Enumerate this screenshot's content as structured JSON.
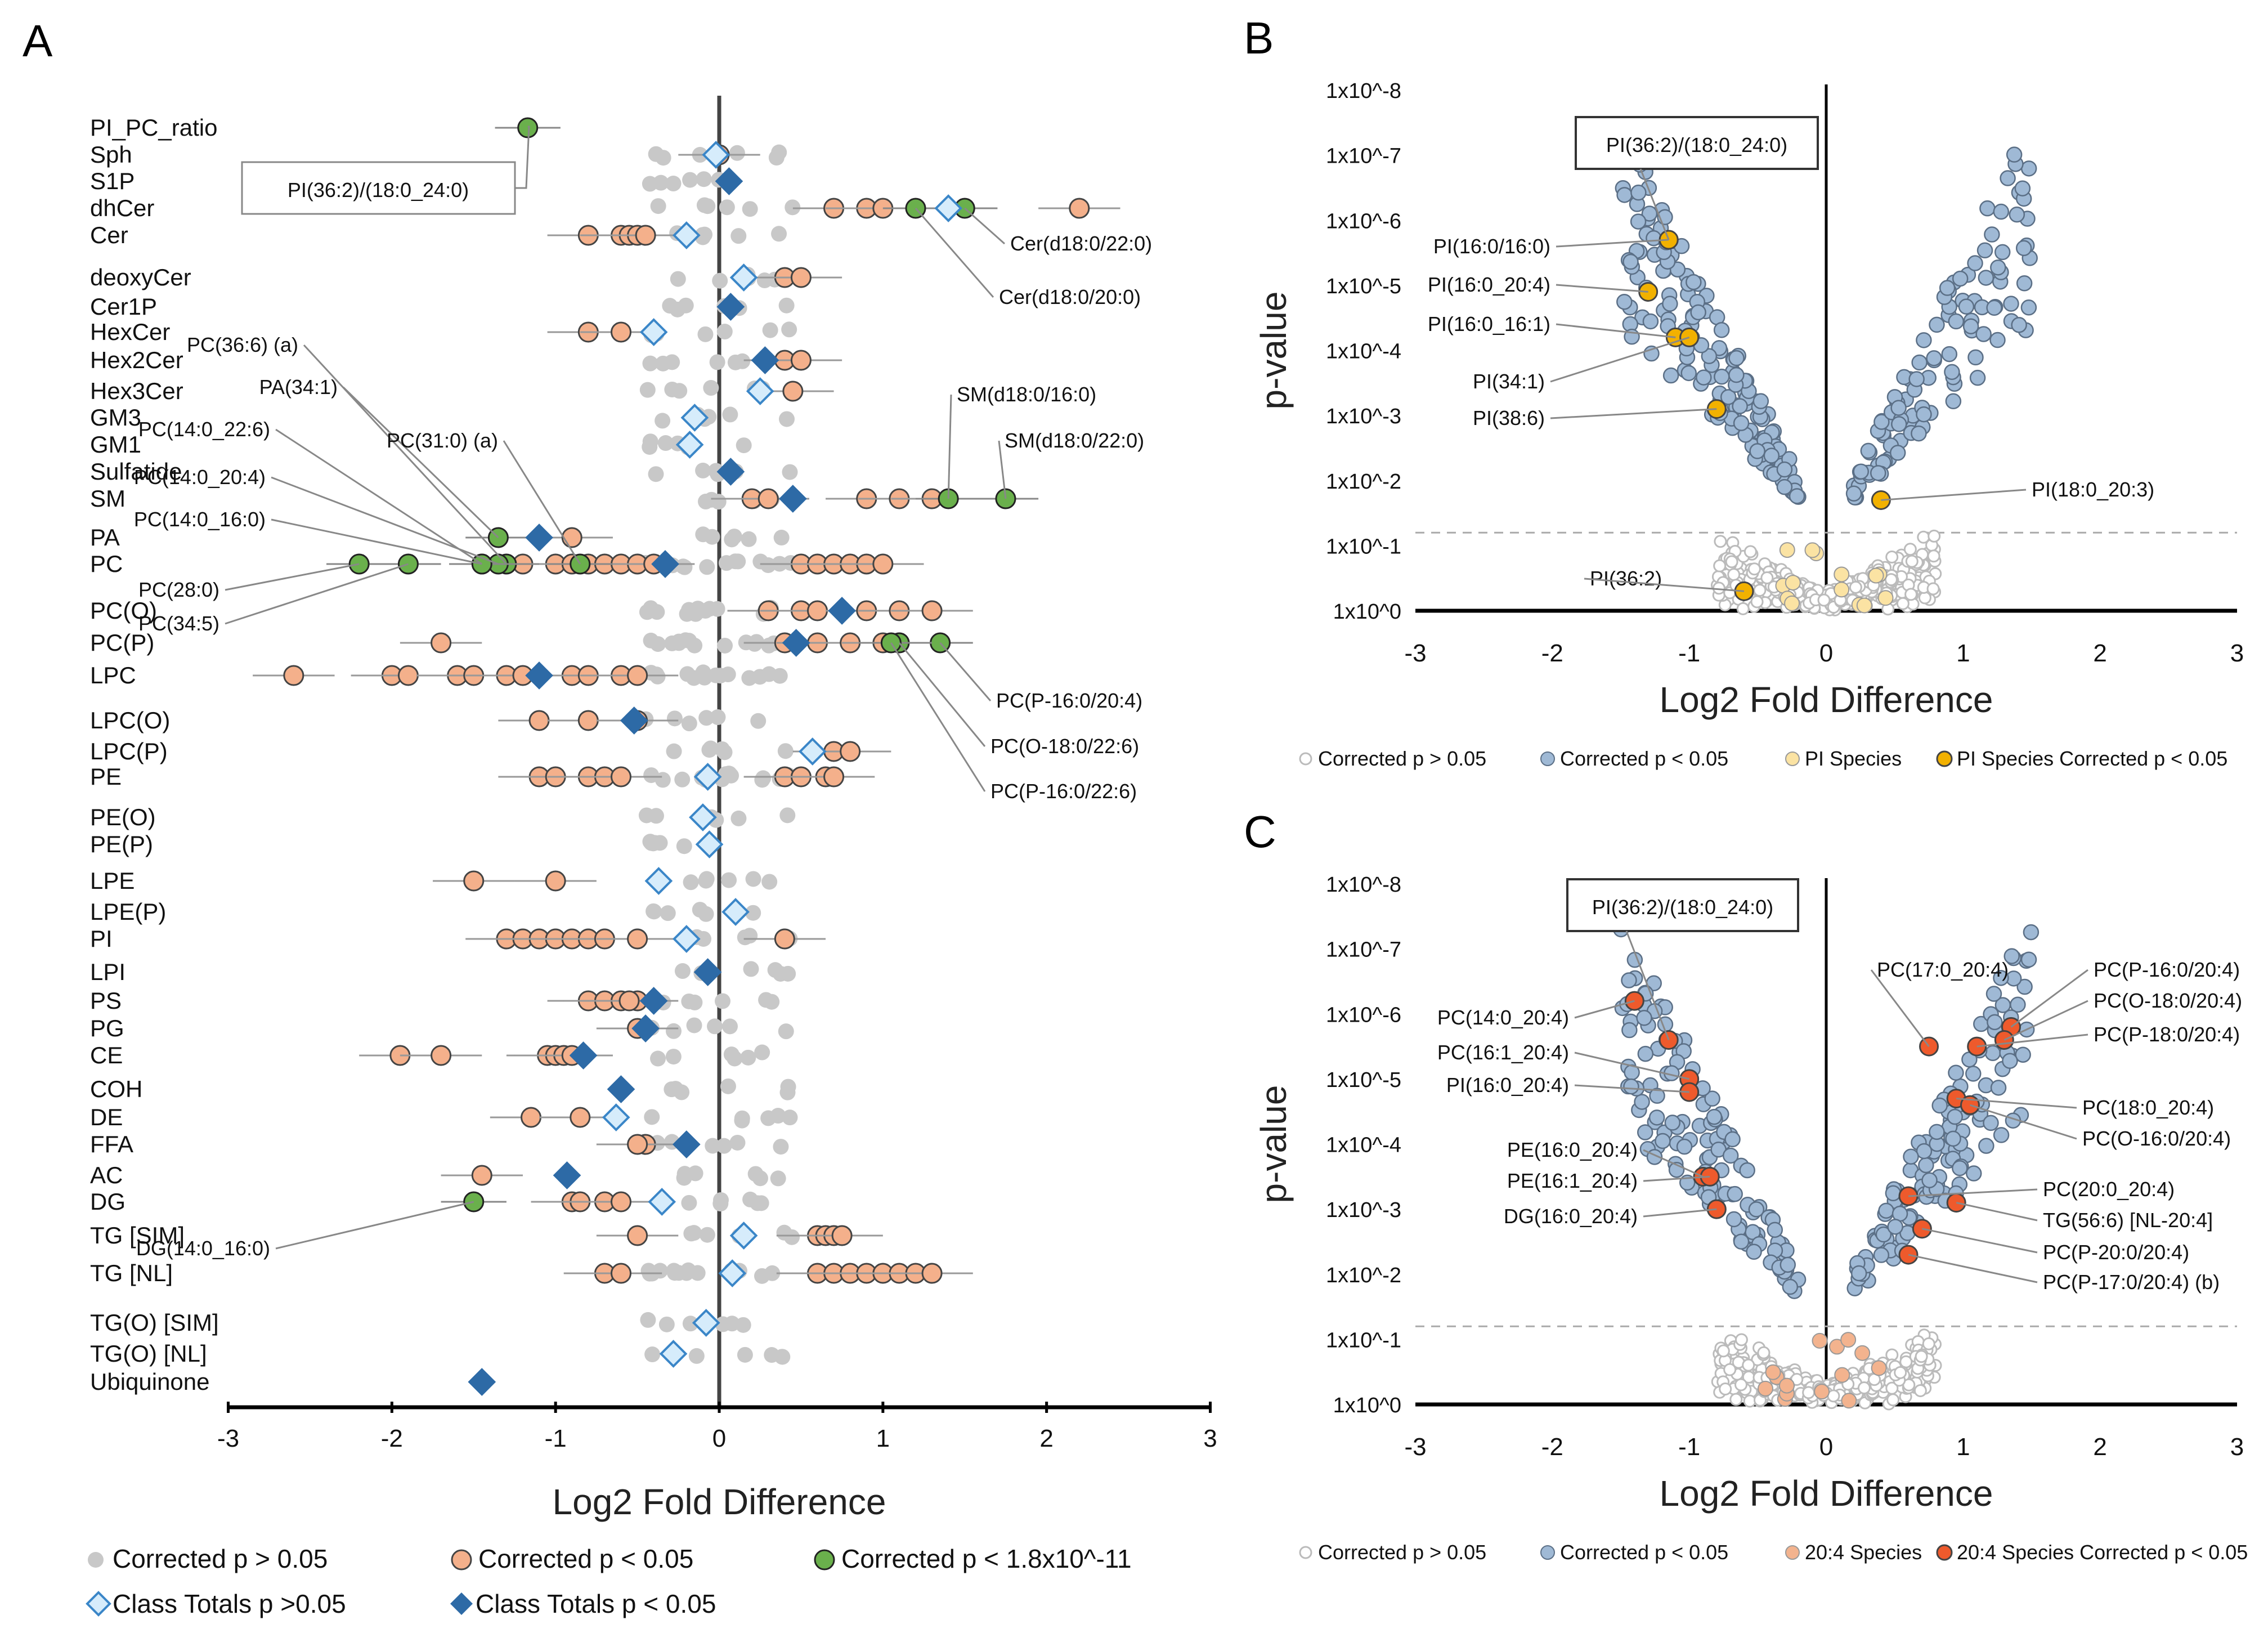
{
  "chart_data": [
    {
      "panel": "A",
      "type": "scatter",
      "xlabel": "Log2 Fold Difference",
      "xlim": [
        -3,
        3
      ],
      "xticks": [
        "-3",
        "-2",
        "-1",
        "0",
        "1",
        "2",
        "3"
      ],
      "classes": [
        "PI_PC_ratio",
        "Sph",
        "S1P",
        "dhCer",
        "Cer",
        "deoxyCer",
        "Cer1P",
        "HexCer",
        "Hex2Cer",
        "Hex3Cer",
        "GM3",
        "GM1",
        "Sulfatide",
        "SM",
        "PA",
        "PC",
        "PC(O)",
        "PC(P)",
        "LPC",
        "LPC(O)",
        "LPC(P)",
        "PE",
        "PE(O)",
        "PE(P)",
        "LPE",
        "LPE(P)",
        "PI",
        "LPI",
        "PS",
        "PG",
        "CE",
        "COH",
        "DE",
        "FFA",
        "AC",
        "DG",
        "TG [SIM]",
        "TG [NL]",
        "TG(O) [SIM]",
        "TG(O) [NL]",
        "Ubiquinone"
      ],
      "class_totals": [
        {
          "class": "Sph",
          "x": -0.02,
          "sig": false
        },
        {
          "class": "S1P",
          "x": 0.06,
          "sig": true
        },
        {
          "class": "dhCer",
          "x": 1.4,
          "sig": false
        },
        {
          "class": "Cer",
          "x": -0.2,
          "sig": false
        },
        {
          "class": "deoxyCer",
          "x": 0.15,
          "sig": false
        },
        {
          "class": "Cer1P",
          "x": 0.07,
          "sig": true
        },
        {
          "class": "HexCer",
          "x": -0.4,
          "sig": false
        },
        {
          "class": "Hex2Cer",
          "x": 0.28,
          "sig": true
        },
        {
          "class": "Hex3Cer",
          "x": 0.25,
          "sig": false
        },
        {
          "class": "GM3",
          "x": -0.15,
          "sig": false
        },
        {
          "class": "GM1",
          "x": -0.18,
          "sig": false
        },
        {
          "class": "Sulfatide",
          "x": 0.07,
          "sig": true
        },
        {
          "class": "SM",
          "x": 0.45,
          "sig": true
        },
        {
          "class": "PA",
          "x": -1.1,
          "sig": true
        },
        {
          "class": "PC",
          "x": -0.33,
          "sig": true
        },
        {
          "class": "PC(O)",
          "x": 0.75,
          "sig": true
        },
        {
          "class": "PC(P)",
          "x": 0.47,
          "sig": true
        },
        {
          "class": "LPC",
          "x": -1.1,
          "sig": true
        },
        {
          "class": "LPC(O)",
          "x": -0.52,
          "sig": true
        },
        {
          "class": "LPC(P)",
          "x": 0.57,
          "sig": false
        },
        {
          "class": "PE",
          "x": -0.07,
          "sig": false
        },
        {
          "class": "PE(O)",
          "x": -0.1,
          "sig": false
        },
        {
          "class": "PE(P)",
          "x": -0.06,
          "sig": false
        },
        {
          "class": "LPE",
          "x": -0.37,
          "sig": false
        },
        {
          "class": "LPE(P)",
          "x": 0.1,
          "sig": false
        },
        {
          "class": "PI",
          "x": -0.2,
          "sig": false
        },
        {
          "class": "LPI",
          "x": -0.07,
          "sig": true
        },
        {
          "class": "PS",
          "x": -0.4,
          "sig": true
        },
        {
          "class": "PG",
          "x": -0.45,
          "sig": true
        },
        {
          "class": "CE",
          "x": -0.83,
          "sig": true
        },
        {
          "class": "COH",
          "x": -0.6,
          "sig": true
        },
        {
          "class": "DE",
          "x": -0.63,
          "sig": false
        },
        {
          "class": "FFA",
          "x": -0.2,
          "sig": true
        },
        {
          "class": "AC",
          "x": -0.93,
          "sig": true
        },
        {
          "class": "DG",
          "x": -0.35,
          "sig": false
        },
        {
          "class": "TG [SIM]",
          "x": 0.15,
          "sig": false
        },
        {
          "class": "TG [NL]",
          "x": 0.08,
          "sig": false
        },
        {
          "class": "TG(O) [SIM]",
          "x": -0.08,
          "sig": false
        },
        {
          "class": "TG(O) [NL]",
          "x": -0.28,
          "sig": false
        },
        {
          "class": "Ubiquinone",
          "x": -1.45,
          "sig": true
        }
      ],
      "highlighted_species": [
        {
          "label": "PI(36:2)/(18:0_24:0)",
          "class": "PI_PC_ratio",
          "x": -1.17
        },
        {
          "label": "Cer(d18:0/22:0)",
          "class": "dhCer",
          "x": 1.5
        },
        {
          "label": "Cer(d18:0/20:0)",
          "class": "dhCer",
          "x": 1.2
        },
        {
          "label": "SM(d18:0/16:0)",
          "class": "SM",
          "x": 1.4
        },
        {
          "label": "SM(d18:0/22:0)",
          "class": "SM",
          "x": 1.75
        },
        {
          "label": "PC(36:6) (a)",
          "class": "PC",
          "x": -1.3
        },
        {
          "label": "PA(34:1)",
          "class": "PA",
          "x": -1.35
        },
        {
          "label": "PC(14:0_22:6)",
          "class": "PC",
          "x": -1.45
        },
        {
          "label": "PC(31:0) (a)",
          "class": "PC",
          "x": -0.85
        },
        {
          "label": "PC(14:0_20:4)",
          "class": "PC",
          "x": -1.35
        },
        {
          "label": "PC(14:0_16:0)",
          "class": "PC",
          "x": -1.45
        },
        {
          "label": "PC(28:0)",
          "class": "PC",
          "x": -2.2
        },
        {
          "label": "PC(34:5)",
          "class": "PC",
          "x": -1.9
        },
        {
          "label": "PC(P-16:0/20:4)",
          "class": "PC(P)",
          "x": 1.35
        },
        {
          "label": "PC(O-18:0/22:6)",
          "class": "PC(P)",
          "x": 1.1
        },
        {
          "label": "PC(P-16:0/22:6)",
          "class": "PC(P)",
          "x": 1.05
        },
        {
          "label": "DG(14:0_16:0)",
          "class": "DG",
          "x": -1.5
        }
      ],
      "legend": [
        "Corrected p > 0.05",
        "Corrected p < 0.05",
        "Corrected p < 1.8x10^-11",
        "Class Totals p >0.05",
        "Class Totals p < 0.05"
      ]
    },
    {
      "panel": "B",
      "type": "scatter",
      "title": "",
      "xlabel": "Log2 Fold Difference",
      "ylabel": "p-value",
      "xlim": [
        -3,
        3
      ],
      "xticks": [
        "-3",
        "-2",
        "-1",
        "0",
        "1",
        "2",
        "3"
      ],
      "yticks": [
        "1x10^0",
        "1x10^-1",
        "1x10^-2",
        "1x10^-3",
        "1x10^-4",
        "1x10^-5",
        "1x10^-6",
        "1x10^-7",
        "1x10^-8"
      ],
      "ylim_neglog10": [
        0,
        8
      ],
      "significance_threshold_neglog10": 1.2,
      "labels": [
        {
          "text": "PI(36:2)/(18:0_24:0)",
          "x": -1.15,
          "y": 5.7
        },
        {
          "text": "PI(16:0/16:0)",
          "x": -1.15,
          "y": 5.7
        },
        {
          "text": "PI(16:0_20:4)",
          "x": -1.3,
          "y": 4.9
        },
        {
          "text": "PI(16:0_16:1)",
          "x": -1.1,
          "y": 4.2
        },
        {
          "text": "PI(34:1)",
          "x": -1.0,
          "y": 4.2
        },
        {
          "text": "PI(38:6)",
          "x": -0.8,
          "y": 3.1
        },
        {
          "text": "PI(18:0_20:3)",
          "x": 0.4,
          "y": 1.7
        },
        {
          "text": "PI(36:2)",
          "x": -0.6,
          "y": 0.3
        }
      ],
      "legend": [
        "Corrected p > 0.05",
        "Corrected p < 0.05",
        "PI Species",
        "PI Species Corrected p < 0.05"
      ]
    },
    {
      "panel": "C",
      "type": "scatter",
      "xlabel": "Log2 Fold Difference",
      "ylabel": "p-value",
      "xlim": [
        -3,
        3
      ],
      "xticks": [
        "-3",
        "-2",
        "-1",
        "0",
        "1",
        "2",
        "3"
      ],
      "yticks": [
        "1x10^0",
        "1x10^-1",
        "1x10^-2",
        "1x10^-3",
        "1x10^-4",
        "1x10^-5",
        "1x10^-6",
        "1x10^-7",
        "1x10^-8"
      ],
      "ylim_neglog10": [
        0,
        8
      ],
      "significance_threshold_neglog10": 1.2,
      "labels": [
        {
          "text": "PI(36:2)/(18:0_24:0)",
          "x": -1.15,
          "y": 5.6
        },
        {
          "text": "PC(14:0_20:4)",
          "x": -1.4,
          "y": 6.2
        },
        {
          "text": "PC(16:1_20:4)",
          "x": -1.0,
          "y": 5.0
        },
        {
          "text": "PI(16:0_20:4)",
          "x": -1.0,
          "y": 4.8
        },
        {
          "text": "PE(16:0_20:4)",
          "x": -0.9,
          "y": 3.5
        },
        {
          "text": "PE(16:1_20:4)",
          "x": -0.85,
          "y": 3.5
        },
        {
          "text": "DG(16:0_20:4)",
          "x": -0.8,
          "y": 3.0
        },
        {
          "text": "PC(17:0_20:4)",
          "x": 0.75,
          "y": 5.5
        },
        {
          "text": "PC(P-16:0/20:4)",
          "x": 1.35,
          "y": 5.8
        },
        {
          "text": "PC(O-18:0/20:4)",
          "x": 1.3,
          "y": 5.6
        },
        {
          "text": "PC(P-18:0/20:4)",
          "x": 1.1,
          "y": 5.5
        },
        {
          "text": "PC(18:0_20:4)",
          "x": 0.95,
          "y": 4.7
        },
        {
          "text": "PC(O-16:0/20:4)",
          "x": 1.05,
          "y": 4.6
        },
        {
          "text": "PC(20:0_20:4)",
          "x": 0.6,
          "y": 3.2
        },
        {
          "text": "TG(56:6) [NL-20:4]",
          "x": 0.95,
          "y": 3.1
        },
        {
          "text": "PC(P-20:0/20:4)",
          "x": 0.7,
          "y": 2.7
        },
        {
          "text": "PC(P-17:0/20:4) (b)",
          "x": 0.6,
          "y": 2.3
        }
      ],
      "legend": [
        "Corrected p > 0.05",
        "Corrected p < 0.05",
        "20:4 Species",
        "20:4 Species Corrected p < 0.05"
      ]
    }
  ],
  "panel_letters": [
    "A",
    "B",
    "C"
  ],
  "ylabel_text": "p-value",
  "xlabel_text": "Log2 Fold Difference",
  "colors": {
    "grey": "#c8c8c8",
    "orange": "#f4b08b",
    "green": "#6ab04c",
    "blue_dark": "#2d6aa6",
    "blue_light": "#d6ecfb",
    "pi_light": "#fbe3a3",
    "pi_dark": "#f2b100",
    "vol_blue": "#9fb9d5",
    "c204_light": "#f3b38e",
    "c204_dark": "#ee5a2c"
  }
}
